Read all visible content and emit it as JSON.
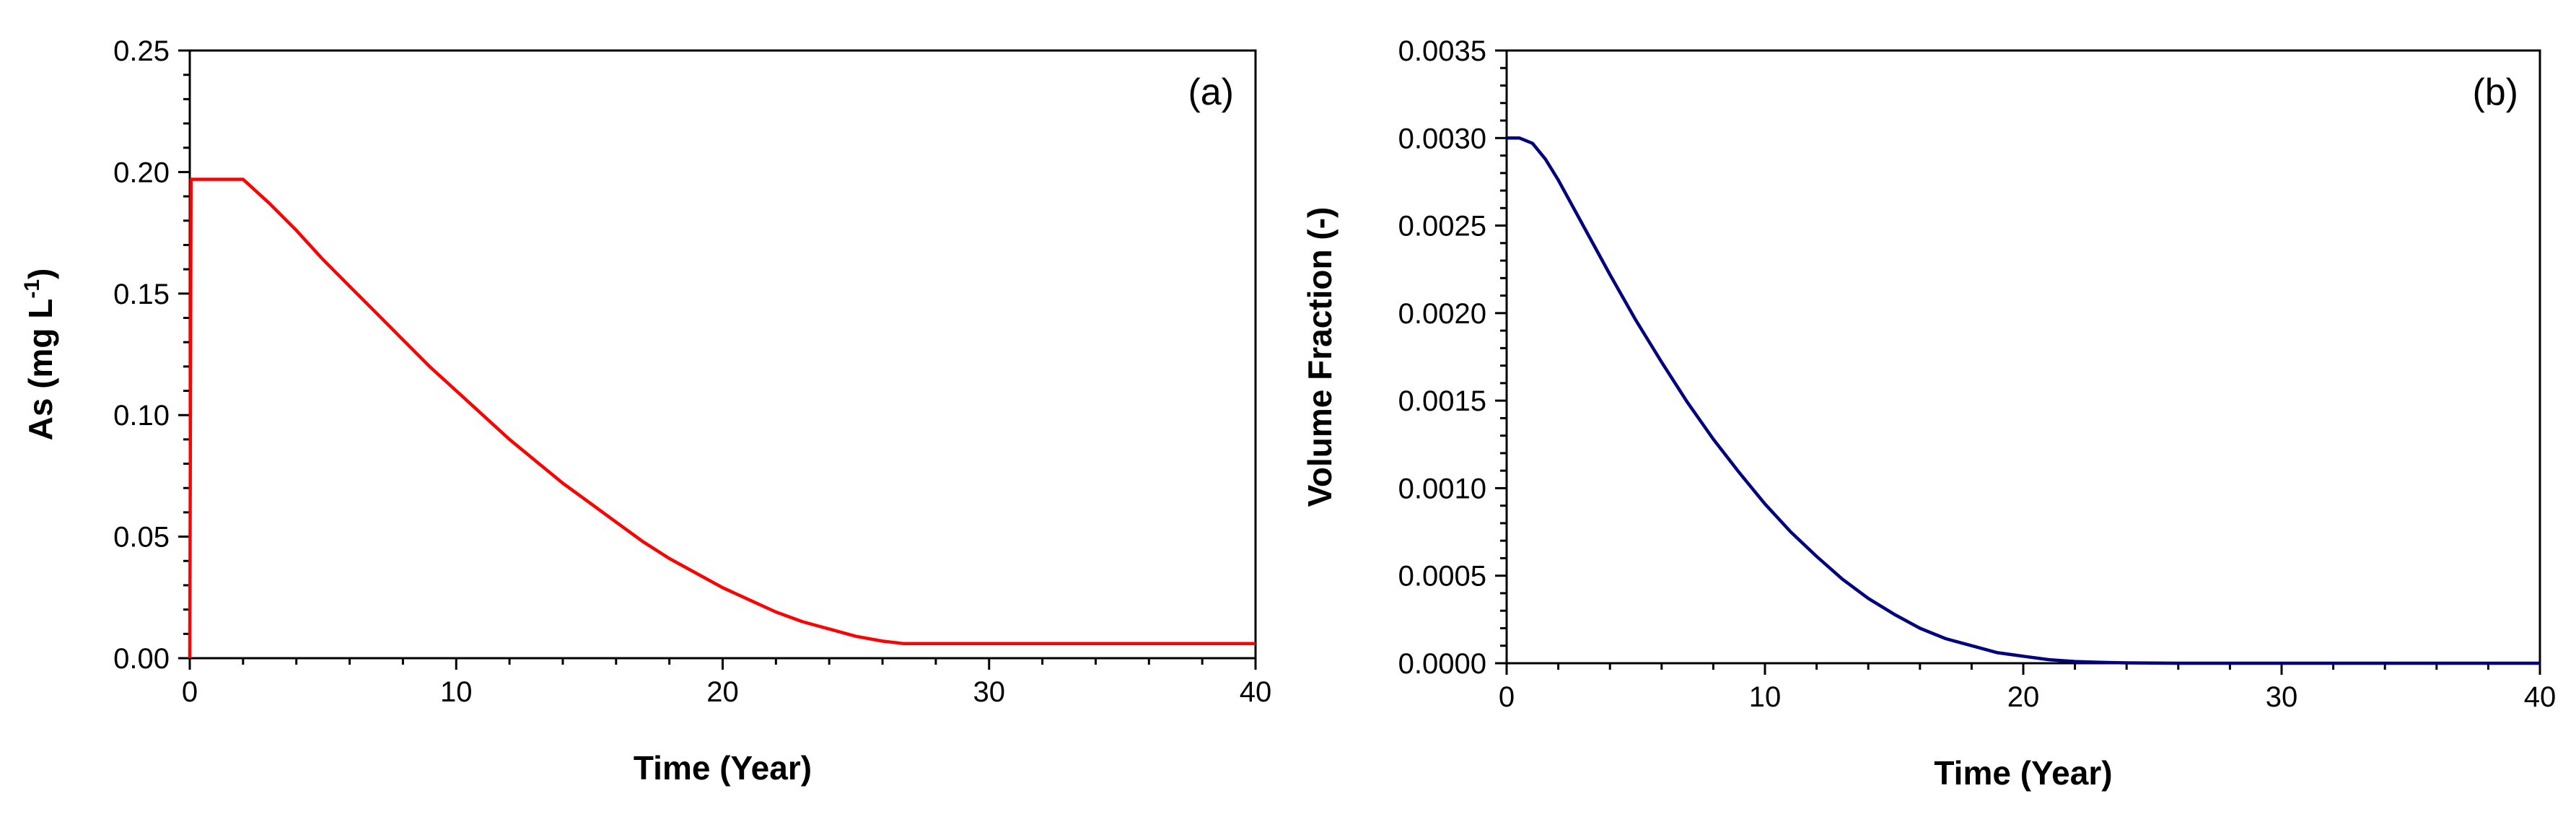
{
  "chart_data": [
    {
      "type": "line",
      "panel_label": "(a)",
      "xlabel": "Time (Year)",
      "ylabel": "As (mg L-1)",
      "ylabel_parts": {
        "main": "As (mg L",
        "sup": "-1",
        "end": ")"
      },
      "xlim": [
        0,
        40
      ],
      "ylim": [
        0,
        0.25
      ],
      "x_ticks": [
        0,
        10,
        20,
        30,
        40
      ],
      "y_ticks": [
        "0.00",
        "0.05",
        "0.10",
        "0.15",
        "0.20",
        "0.25"
      ],
      "grid": false,
      "legend": "none",
      "series": [
        {
          "color": "#ff0000",
          "x": [
            0,
            0.05,
            2,
            3,
            4,
            5,
            6,
            7,
            8,
            9,
            10,
            11,
            12,
            13,
            14,
            15,
            16,
            17,
            18,
            19,
            20,
            21,
            22,
            23,
            24,
            25,
            26,
            26.8,
            27,
            30,
            35,
            40
          ],
          "y": [
            0,
            0.197,
            0.197,
            0.187,
            0.176,
            0.164,
            0.153,
            0.142,
            0.131,
            0.12,
            0.11,
            0.1,
            0.09,
            0.081,
            0.072,
            0.064,
            0.056,
            0.048,
            0.041,
            0.035,
            0.029,
            0.024,
            0.019,
            0.015,
            0.012,
            0.009,
            0.007,
            0.006,
            0.006,
            0.006,
            0.006,
            0.006
          ]
        }
      ]
    },
    {
      "type": "line",
      "panel_label": "(b)",
      "xlabel": "Time (Year)",
      "ylabel": "Volume Fraction (-)",
      "xlim": [
        0,
        40
      ],
      "ylim": [
        0,
        0.0035
      ],
      "x_ticks": [
        0,
        10,
        20,
        30,
        40
      ],
      "y_ticks": [
        "0.0000",
        "0.0005",
        "0.0010",
        "0.0015",
        "0.0020",
        "0.0025",
        "0.0030",
        "0.0035"
      ],
      "grid": false,
      "legend": "none",
      "series": [
        {
          "color": "#000080",
          "x": [
            0,
            0.5,
            1,
            1.5,
            2,
            3,
            4,
            5,
            6,
            7,
            8,
            9,
            10,
            11,
            12,
            13,
            14,
            15,
            16,
            17,
            18,
            19,
            20,
            21,
            22,
            23,
            24,
            25,
            26,
            30,
            35,
            40
          ],
          "y": [
            0.003,
            0.003,
            0.00297,
            0.00288,
            0.00276,
            0.00249,
            0.00222,
            0.00196,
            0.00172,
            0.00149,
            0.00128,
            0.00109,
            0.00091,
            0.00075,
            0.00061,
            0.00048,
            0.00037,
            0.00028,
            0.0002,
            0.00014,
            0.0001,
            6e-05,
            4e-05,
            2e-05,
            1e-05,
            5e-06,
            2e-06,
            1e-06,
            0,
            0,
            0,
            0
          ]
        }
      ]
    }
  ]
}
